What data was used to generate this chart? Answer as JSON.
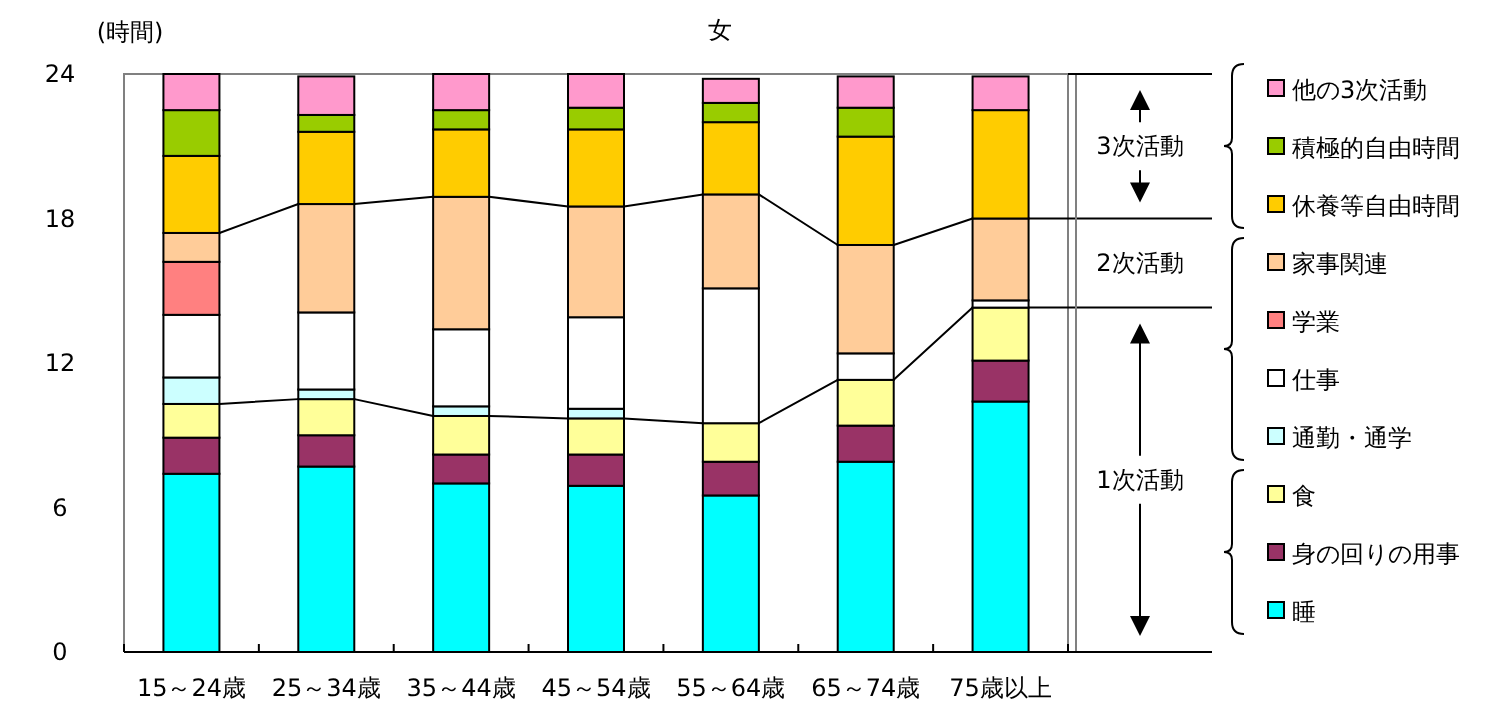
{
  "chart_data": {
    "type": "bar",
    "stacked": true,
    "title": "女",
    "ylabel": "(時間)",
    "categories": [
      "15～24歳",
      "25～34歳",
      "35～44歳",
      "45～54歳",
      "55～64歳",
      "65～74歳",
      "75歳以上"
    ],
    "series": [
      {
        "name": "睡",
        "color": "#00ffff",
        "values": [
          7.4,
          7.7,
          7.0,
          6.9,
          6.5,
          7.9,
          10.4
        ]
      },
      {
        "name": "身の回りの用事",
        "color": "#993366",
        "values": [
          1.5,
          1.3,
          1.2,
          1.3,
          1.4,
          1.5,
          1.7
        ]
      },
      {
        "name": "食",
        "color": "#ffff99",
        "values": [
          1.4,
          1.5,
          1.6,
          1.5,
          1.6,
          1.9,
          2.2
        ]
      },
      {
        "name": "通勤・通学",
        "color": "#ccffff",
        "values": [
          1.1,
          0.4,
          0.4,
          0.4,
          null,
          0,
          0
        ]
      },
      {
        "name": "仕事",
        "color": "#ffffff",
        "values": [
          2.6,
          3.2,
          3.2,
          3.8,
          5.6,
          1.1,
          0.3
        ]
      },
      {
        "name": "学業",
        "color": "#ff8080",
        "values": [
          2.2,
          null,
          0,
          0,
          0,
          0,
          0
        ]
      },
      {
        "name": "家事関連",
        "color": "#ffcc99",
        "values": [
          1.2,
          4.5,
          5.5,
          4.6,
          3.9,
          4.5,
          3.4
        ]
      },
      {
        "name": "休養等自由時間",
        "color": "#ffcc00",
        "values": [
          3.2,
          3.0,
          2.8,
          3.2,
          3.0,
          4.5,
          4.5
        ]
      },
      {
        "name": "積極的自由時間",
        "color": "#99cc00",
        "values": [
          1.9,
          0.7,
          0.8,
          0.9,
          0.8,
          1.2,
          null
        ]
      },
      {
        "name": "他の3次活動",
        "color": "#ff99cc",
        "values": [
          1.5,
          1.6,
          1.5,
          1.4,
          1.0,
          1.3,
          1.4
        ]
      }
    ],
    "ylim": [
      0,
      24
    ],
    "yticks": [
      0,
      6,
      12,
      18,
      24
    ],
    "grid": false,
    "legend": "right",
    "annotations": [
      "3次活動",
      "2次活動",
      "1次活動"
    ]
  }
}
